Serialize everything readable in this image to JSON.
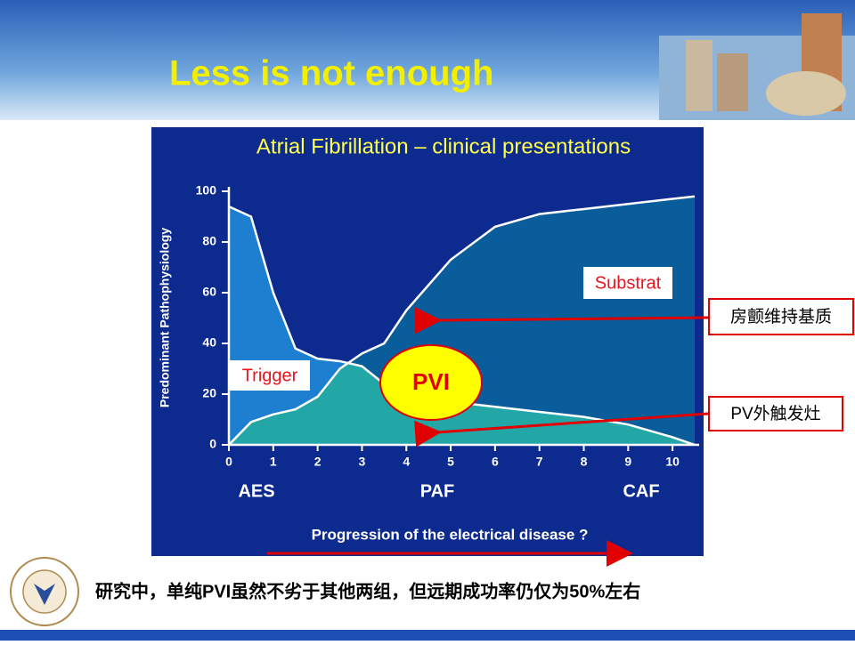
{
  "title": "Less is not enough",
  "chart_data": {
    "type": "area",
    "title": "Atrial Fibrillation – clinical presentations",
    "y_label": "Predominant Pathophysiology",
    "x_label": "Progression of the electrical disease ?",
    "stages": [
      "AES",
      "PAF",
      "CAF"
    ],
    "x": [
      0,
      0.5,
      1,
      1.5,
      2,
      2.5,
      3,
      3.5,
      4,
      5,
      6,
      7,
      8,
      9,
      10,
      10.5
    ],
    "series": [
      {
        "name": "Trigger",
        "color": "#1e7fd0",
        "values": [
          94,
          90,
          60,
          38,
          34,
          33,
          31,
          24,
          21,
          17,
          15,
          13,
          11,
          8,
          3,
          0
        ]
      },
      {
        "name": "Substrat",
        "color": "#0a5d9b",
        "values": [
          0,
          9,
          12,
          14,
          19,
          30,
          36,
          40,
          53,
          73,
          86,
          91,
          93,
          95,
          97,
          98
        ]
      }
    ],
    "annotation": "PVI",
    "xlim": [
      0,
      10.6
    ],
    "xticks": [
      0,
      1,
      2,
      3,
      4,
      5,
      6,
      7,
      8,
      9,
      10
    ],
    "ylim": [
      0,
      100
    ],
    "yticks": [
      0,
      20,
      40,
      60,
      80,
      100
    ]
  },
  "callouts": [
    "房颤维持基质",
    "PV外触发灶"
  ],
  "footer": "研究中，单纯PVI虽然不劣于其他两组，但远期成功率仍仅为50%左右"
}
